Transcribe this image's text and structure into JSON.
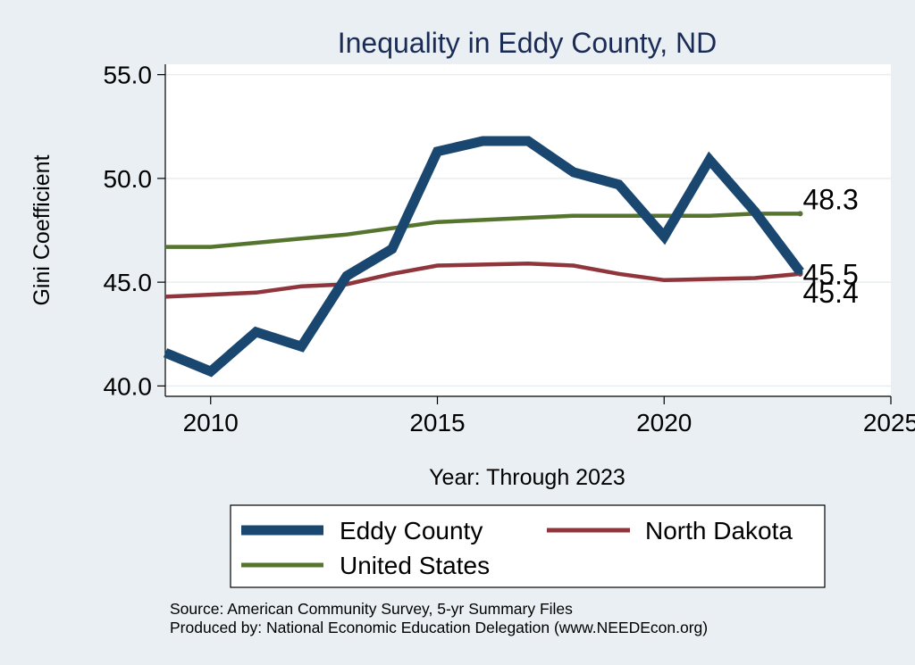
{
  "chart_data": {
    "type": "line",
    "title": "Inequality in Eddy County, ND",
    "xlabel": "Year: Through 2023",
    "ylabel": "Gini Coefficient",
    "xlim": [
      2009,
      2025
    ],
    "ylim": [
      39.5,
      55.5
    ],
    "x_ticks": [
      2010,
      2015,
      2020,
      2025
    ],
    "y_ticks": [
      40.0,
      45.0,
      50.0,
      55.0
    ],
    "x_tick_labels": [
      "2010",
      "2015",
      "2020",
      "2025"
    ],
    "y_tick_labels": [
      "40.0",
      "45.0",
      "50.0",
      "55.0"
    ],
    "grid": "horizontal",
    "x": [
      2009,
      2010,
      2011,
      2012,
      2013,
      2014,
      2015,
      2016,
      2017,
      2018,
      2019,
      2020,
      2021,
      2022,
      2023
    ],
    "series": [
      {
        "name": "Eddy County",
        "color": "#1a476f",
        "values": [
          41.6,
          40.7,
          42.6,
          41.9,
          45.3,
          46.6,
          51.3,
          51.8,
          51.8,
          50.3,
          49.7,
          47.2,
          50.9,
          48.4,
          45.5
        ]
      },
      {
        "name": "North Dakota",
        "color": "#90353b",
        "values": [
          44.3,
          44.4,
          44.5,
          44.8,
          44.9,
          45.4,
          45.8,
          45.85,
          45.9,
          45.8,
          45.4,
          45.1,
          45.15,
          45.2,
          45.4
        ]
      },
      {
        "name": "United States",
        "color": "#55752f",
        "values": [
          46.7,
          46.7,
          46.9,
          47.1,
          47.3,
          47.6,
          47.9,
          48.0,
          48.1,
          48.2,
          48.2,
          48.2,
          48.2,
          48.3,
          48.3
        ]
      }
    ],
    "end_labels": [
      "45.5",
      "45.4",
      "48.3"
    ],
    "legend": {
      "position": "bottom",
      "items": [
        "Eddy County",
        "North Dakota",
        "United States"
      ]
    },
    "notes": [
      "Source: American Community Survey, 5-yr Summary Files",
      "Produced by: National Economic Education Delegation (www.NEEDEcon.org)"
    ]
  },
  "colors": {
    "background": "#e9eff2",
    "plot_background": "#ffffff",
    "title": "#1a2b55"
  }
}
